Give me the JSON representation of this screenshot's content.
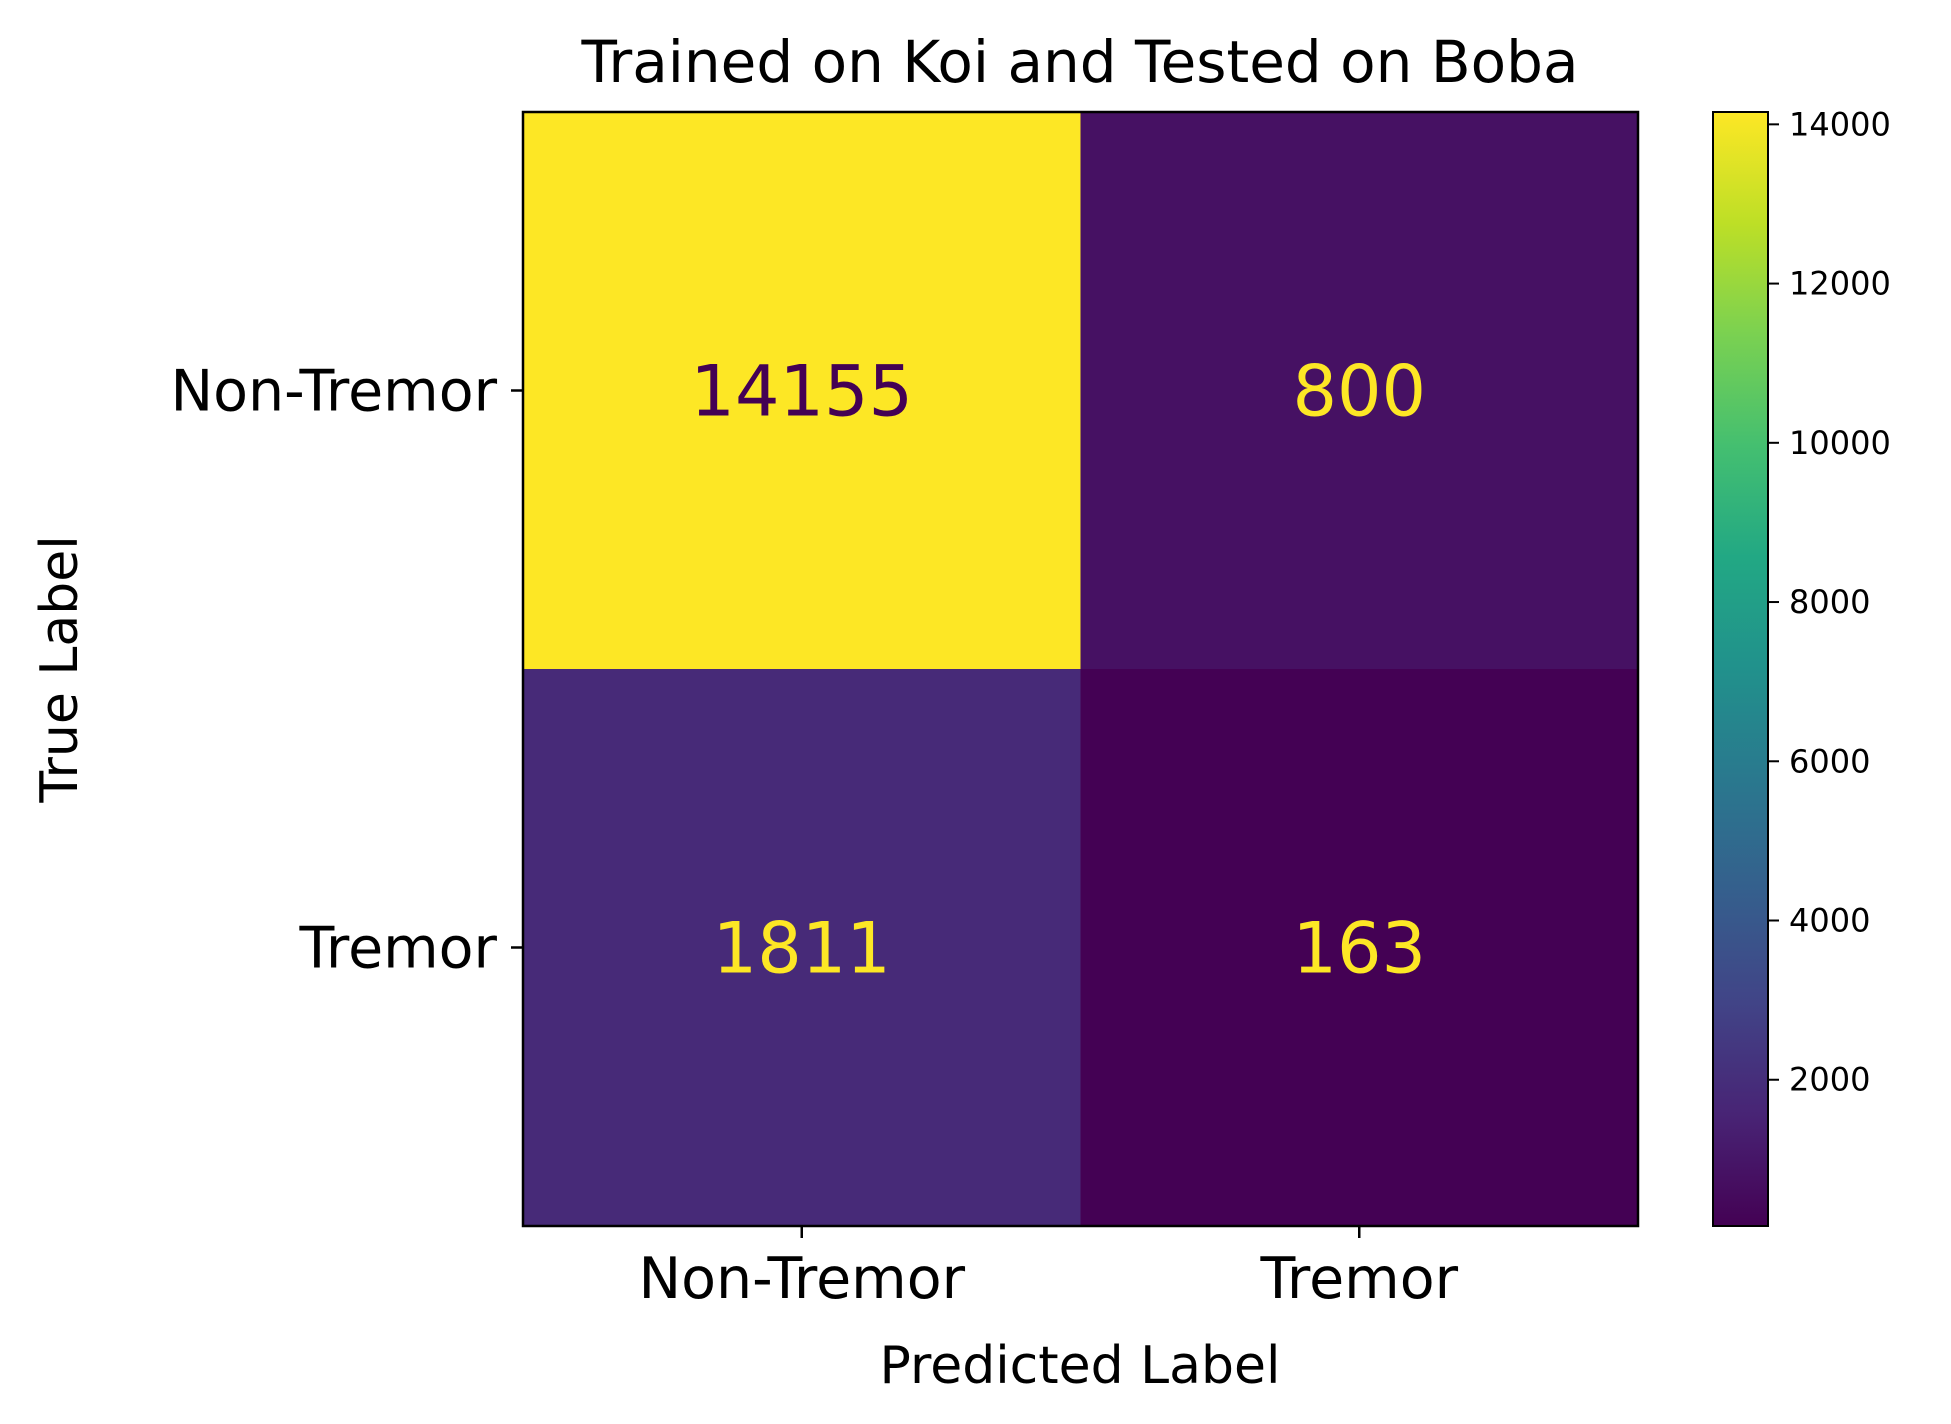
{
  "chart_data": {
    "type": "heatmap",
    "title": "Trained on Koi and Tested on Boba",
    "xlabel": "Predicted Label",
    "ylabel": "True Label",
    "x_categories": [
      "Non-Tremor",
      "Tremor"
    ],
    "y_categories": [
      "Non-Tremor",
      "Tremor"
    ],
    "values": [
      [
        14155,
        800
      ],
      [
        1811,
        163
      ]
    ],
    "colormap": "viridis",
    "colorbar": {
      "range": [
        163,
        14155
      ],
      "ticks": [
        2000,
        4000,
        6000,
        8000,
        10000,
        12000,
        14000
      ],
      "tick_labels": [
        "2000",
        "4000",
        "6000",
        "8000",
        "10000",
        "12000",
        "14000"
      ]
    },
    "colors": {
      "cell_text_dark": "#440154",
      "cell_text_light": "#fde725"
    }
  }
}
